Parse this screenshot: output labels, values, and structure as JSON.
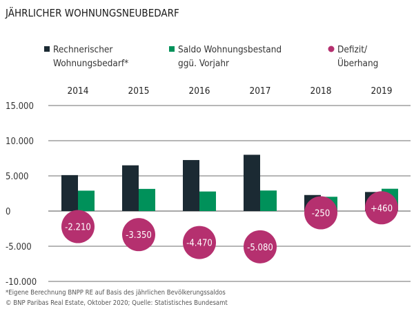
{
  "chart_data": {
    "type": "bar",
    "title": "JÄHRLICHER WOHNUNGSNEUBEDARF",
    "categories": [
      "2014",
      "2015",
      "2016",
      "2017",
      "2018",
      "2019"
    ],
    "series": [
      {
        "name": "Rechnerischer Wohnungsbedarf*",
        "legend_lines": [
          "Rechnerischer",
          "Wohnungsbedarf*"
        ],
        "color": "#1b2a33",
        "marker": "square",
        "values": [
          5110,
          6500,
          7250,
          8000,
          2280,
          2710
        ]
      },
      {
        "name": "Saldo Wohnungsbestand ggü. Vorjahr",
        "legend_lines": [
          "Saldo Wohnungsbestand",
          "ggü. Vorjahr"
        ],
        "color": "#00915a",
        "marker": "square",
        "values": [
          2900,
          3150,
          2780,
          2920,
          2030,
          3170
        ]
      },
      {
        "name": "Defizit/ Überhang",
        "legend_lines": [
          "Defizit/",
          "Überhang"
        ],
        "color": "#b5306f",
        "marker": "circle",
        "values": [
          -2210,
          -3350,
          -4470,
          -5080,
          -250,
          460
        ],
        "labels": [
          "-2.210",
          "-3.350",
          "-4.470",
          "-5.080",
          "-250",
          "+460"
        ]
      }
    ],
    "yticks": [
      15000,
      10000,
      5000,
      0,
      -5000,
      -10000
    ],
    "ytick_labels": [
      "15.000",
      "10.000",
      "5.000",
      "0",
      "-5.000",
      "-10.000"
    ],
    "ylim": [
      -10000,
      15000
    ],
    "grid": true,
    "legend_position": "top",
    "xaxis_position": "top"
  },
  "footnotes": [
    "*Eigene Berechnung BNPP RE auf Basis des jährlichen Bevölkerungssaldos",
    "© BNP Paribas Real Estate, Oktober 2020; Quelle: Statistisches Bundesamt"
  ]
}
